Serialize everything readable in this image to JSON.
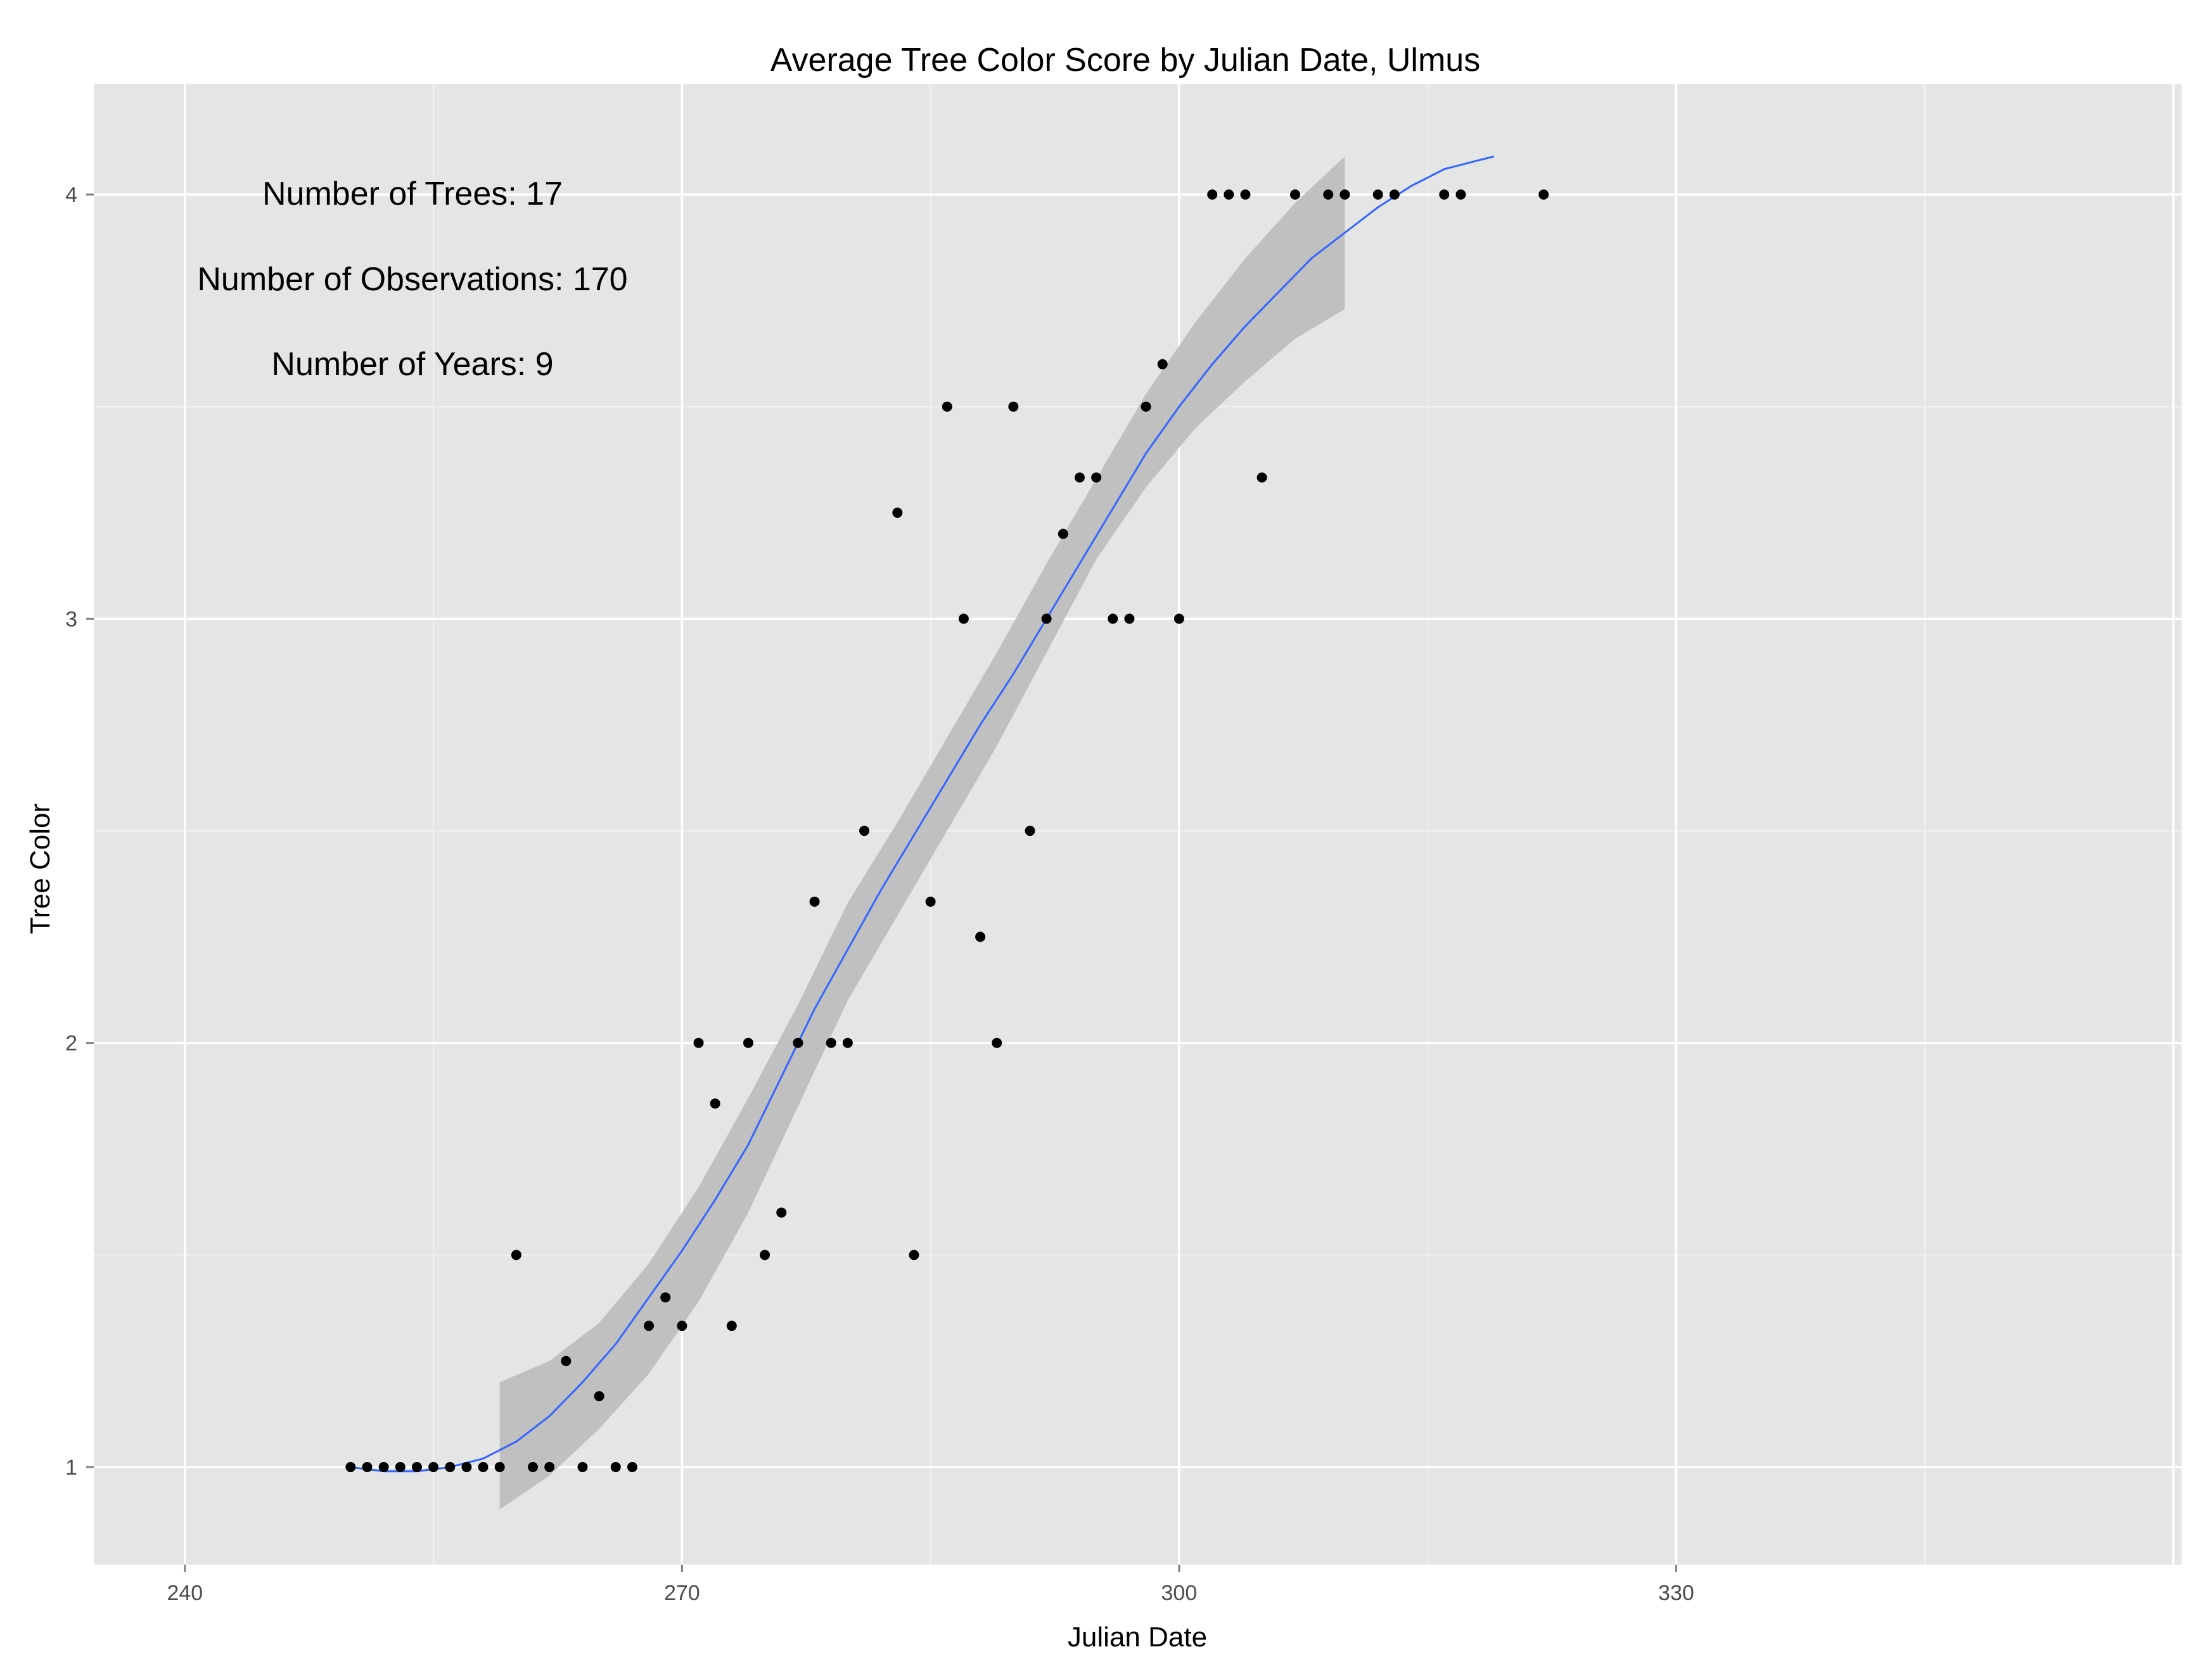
{
  "chart_data": {
    "type": "scatter",
    "title": "Average Tree Color Score by Julian Date, Ulmus",
    "xlabel": "Julian Date",
    "ylabel": "Tree Color",
    "xlim": [
      234.5,
      360.5
    ],
    "ylim": [
      0.77,
      4.26
    ],
    "x_ticks": [
      240,
      270,
      300,
      330
    ],
    "y_ticks": [
      1,
      2,
      3,
      4
    ],
    "grid": true,
    "annotations": [
      "Number of Trees: 17",
      "Number of Observations: 170",
      "Number of Years: 9"
    ],
    "series": [
      {
        "points": [
          [
            250,
            1
          ],
          [
            251,
            1
          ],
          [
            252,
            1
          ],
          [
            253,
            1
          ],
          [
            254,
            1
          ],
          [
            255,
            1
          ],
          [
            256,
            1
          ],
          [
            257,
            1
          ],
          [
            258,
            1
          ],
          [
            259,
            1
          ],
          [
            260,
            1.5
          ],
          [
            261,
            1
          ],
          [
            262,
            1
          ],
          [
            263,
            1.25
          ],
          [
            264,
            1
          ],
          [
            265,
            1.167
          ],
          [
            266,
            1
          ],
          [
            267,
            1
          ],
          [
            268,
            1.333
          ],
          [
            269,
            1.4
          ],
          [
            270,
            1.333
          ],
          [
            271,
            2
          ],
          [
            272,
            1.857
          ],
          [
            273,
            1.333
          ],
          [
            274,
            2
          ],
          [
            275,
            1.5
          ],
          [
            276,
            1.6
          ],
          [
            277,
            2
          ],
          [
            278,
            2.333
          ],
          [
            279,
            2
          ],
          [
            280,
            2
          ],
          [
            281,
            2.5
          ],
          [
            283,
            3.25
          ],
          [
            284,
            1.5
          ],
          [
            285,
            2.333
          ],
          [
            286,
            3.5
          ],
          [
            287,
            3
          ],
          [
            288,
            2.25
          ],
          [
            289,
            2
          ],
          [
            290,
            3.5
          ],
          [
            291,
            2.5
          ],
          [
            292,
            3
          ],
          [
            293,
            3.2
          ],
          [
            294,
            3.333
          ],
          [
            295,
            3.333
          ],
          [
            296,
            3
          ],
          [
            297,
            3
          ],
          [
            298,
            3.5
          ],
          [
            299,
            3.6
          ],
          [
            300,
            3
          ],
          [
            302,
            4
          ],
          [
            303,
            4
          ],
          [
            304,
            4
          ],
          [
            305,
            3.333
          ],
          [
            307,
            4
          ],
          [
            309,
            4
          ],
          [
            310,
            4
          ],
          [
            312,
            4
          ],
          [
            313,
            4
          ],
          [
            316,
            4
          ],
          [
            317,
            4
          ],
          [
            322,
            4
          ]
        ]
      }
    ],
    "smooth_line": {
      "color": "#3366ff",
      "points": [
        [
          250,
          1.0
        ],
        [
          252,
          0.99
        ],
        [
          254,
          0.99
        ],
        [
          256,
          1.0
        ],
        [
          258,
          1.02
        ],
        [
          260,
          1.06
        ],
        [
          262,
          1.12
        ],
        [
          264,
          1.2
        ],
        [
          266,
          1.29
        ],
        [
          268,
          1.4
        ],
        [
          270,
          1.51
        ],
        [
          272,
          1.63
        ],
        [
          274,
          1.76
        ],
        [
          276,
          1.92
        ],
        [
          278,
          2.08
        ],
        [
          280,
          2.22
        ],
        [
          282,
          2.36
        ],
        [
          284,
          2.49
        ],
        [
          286,
          2.62
        ],
        [
          288,
          2.75
        ],
        [
          290,
          2.87
        ],
        [
          292,
          3.0
        ],
        [
          294,
          3.13
        ],
        [
          296,
          3.26
        ],
        [
          298,
          3.39
        ],
        [
          300,
          3.5
        ],
        [
          302,
          3.6
        ],
        [
          304,
          3.69
        ],
        [
          306,
          3.77
        ],
        [
          308,
          3.85
        ],
        [
          310,
          3.91
        ],
        [
          312,
          3.97
        ],
        [
          314,
          4.02
        ],
        [
          316,
          4.06
        ],
        [
          318,
          4.08
        ],
        [
          319,
          4.09
        ]
      ]
    },
    "confidence_band": {
      "color": "#bdbdbd",
      "upper": [
        [
          259,
          1.2
        ],
        [
          262,
          1.25
        ],
        [
          265,
          1.34
        ],
        [
          268,
          1.48
        ],
        [
          271,
          1.66
        ],
        [
          274,
          1.87
        ],
        [
          277,
          2.09
        ],
        [
          280,
          2.33
        ],
        [
          283,
          2.52
        ],
        [
          286,
          2.72
        ],
        [
          289,
          2.92
        ],
        [
          292,
          3.13
        ],
        [
          295,
          3.33
        ],
        [
          298,
          3.53
        ],
        [
          301,
          3.7
        ],
        [
          304,
          3.85
        ],
        [
          307,
          3.98
        ],
        [
          310,
          4.09
        ]
      ],
      "lower": [
        [
          259,
          0.9
        ],
        [
          262,
          0.98
        ],
        [
          265,
          1.09
        ],
        [
          268,
          1.22
        ],
        [
          271,
          1.39
        ],
        [
          274,
          1.6
        ],
        [
          277,
          1.85
        ],
        [
          280,
          2.1
        ],
        [
          283,
          2.3
        ],
        [
          286,
          2.5
        ],
        [
          289,
          2.7
        ],
        [
          292,
          2.92
        ],
        [
          295,
          3.14
        ],
        [
          298,
          3.31
        ],
        [
          301,
          3.45
        ],
        [
          304,
          3.56
        ],
        [
          307,
          3.66
        ],
        [
          310,
          3.73
        ]
      ]
    }
  }
}
